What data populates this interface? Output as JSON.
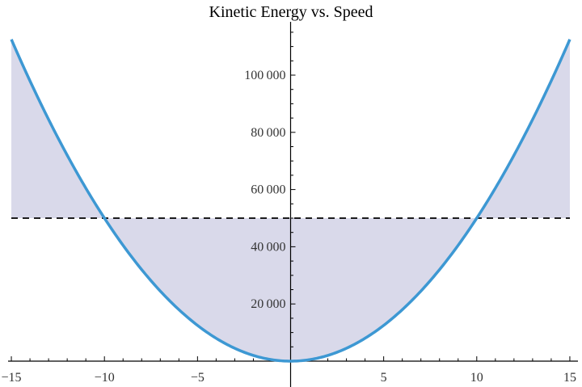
{
  "chart_data": {
    "type": "area",
    "title": "Kinetic Energy vs. Speed",
    "xlabel": "",
    "ylabel": "",
    "function": "KE = 500 * v^2",
    "x_range": [
      -15,
      15
    ],
    "ylim": [
      0,
      115000
    ],
    "x_ticks": [
      -15,
      -10,
      -5,
      5,
      10,
      15
    ],
    "x_tick_labels": [
      "−15",
      "−10",
      "−5",
      "5",
      "10",
      "15"
    ],
    "y_ticks": [
      20000,
      40000,
      60000,
      80000,
      100000
    ],
    "y_tick_labels": [
      "20 000",
      "40 000",
      "60 000",
      "80 000",
      "100 000"
    ],
    "series": [
      {
        "name": "Kinetic Energy",
        "color": "#3d98d3",
        "fill": "#d9d9ea",
        "x": [
          -15,
          -12.5,
          -10,
          -7.5,
          -5,
          -2.5,
          0,
          2.5,
          5,
          7.5,
          10,
          12.5,
          15
        ],
        "values": [
          112500,
          78125,
          50000,
          28125,
          12500,
          3125,
          0,
          3125,
          12500,
          28125,
          50000,
          78125,
          112500
        ]
      }
    ],
    "reference_line": {
      "y": 50000,
      "style": "dashed",
      "color": "#000000"
    },
    "intersections": [
      [
        -10,
        50000
      ],
      [
        10,
        50000
      ]
    ],
    "grid": false,
    "legend": "none"
  },
  "colors": {
    "curve": "#3d98d3",
    "fill": "#d9d9ea",
    "axis": "#000000",
    "dashed": "#000000"
  }
}
